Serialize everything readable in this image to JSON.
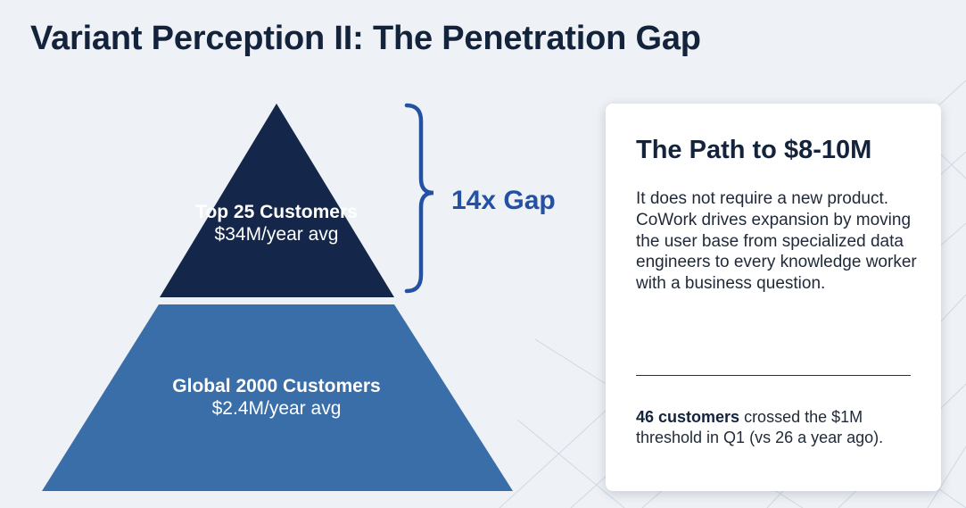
{
  "title": "Variant Perception II: The Penetration Gap",
  "pyramid": {
    "top_tier": {
      "name": "Top 25 Customers",
      "value": "$34M/year avg"
    },
    "bottom_tier": {
      "name": "Global 2000 Customers",
      "value": "$2.4M/year avg"
    },
    "gap_label": "14x Gap"
  },
  "card": {
    "title": "The Path to $8-10M",
    "body": "It does not require a new product. CoWork drives expansion by moving the user base from specialized data engineers to every knowledge worker with a business question.",
    "note_bold": "46 customers",
    "note_rest": " crossed the $1M threshold in Q1 (vs 26 a year ago)."
  },
  "colors": {
    "background": "#eef1f5",
    "top_tier": "#14274a",
    "bottom_tier": "#3a6ea8",
    "accent": "#2451a3",
    "title_text": "#14233c"
  }
}
